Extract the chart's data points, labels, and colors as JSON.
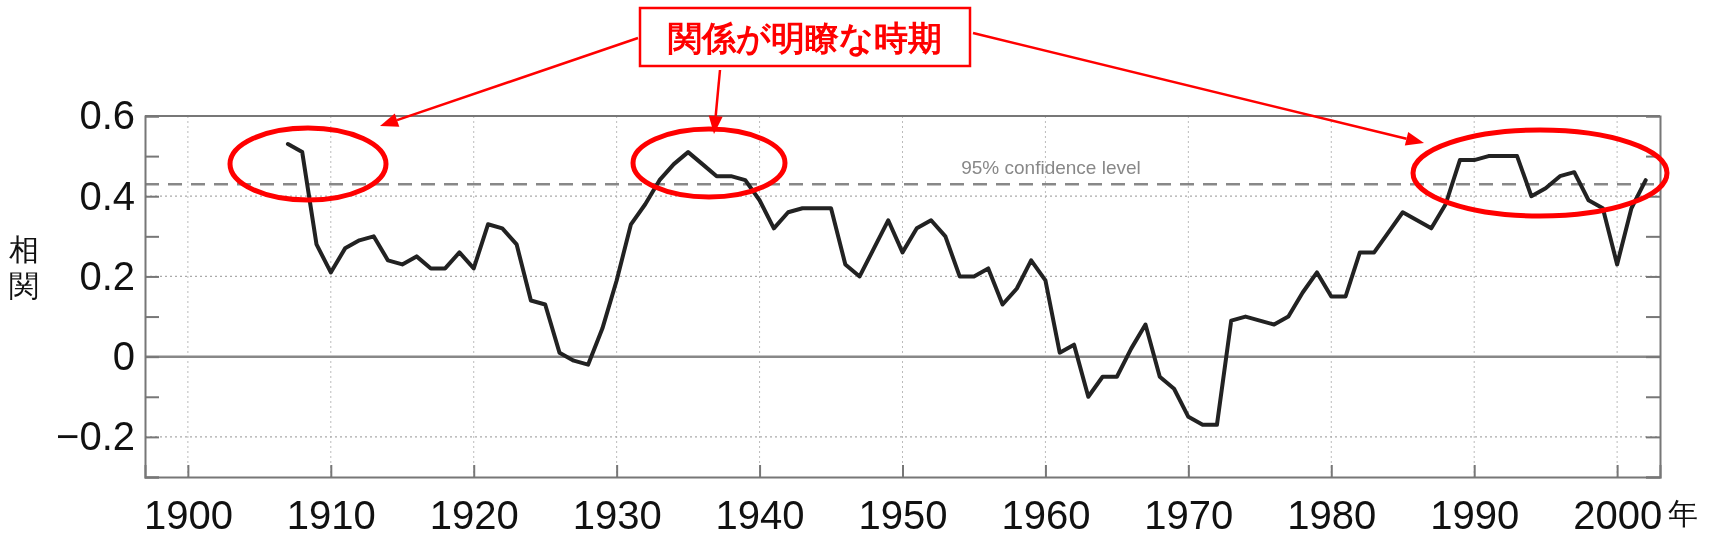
{
  "chart_data": {
    "type": "line",
    "xlabel": "年",
    "ylabel": "相関",
    "x": [
      1907,
      1908,
      1909,
      1910,
      1911,
      1912,
      1913,
      1914,
      1915,
      1916,
      1917,
      1918,
      1919,
      1920,
      1921,
      1922,
      1923,
      1924,
      1925,
      1926,
      1927,
      1928,
      1929,
      1930,
      1931,
      1932,
      1933,
      1934,
      1935,
      1936,
      1937,
      1938,
      1939,
      1940,
      1941,
      1942,
      1943,
      1944,
      1945,
      1946,
      1947,
      1948,
      1949,
      1950,
      1951,
      1952,
      1953,
      1954,
      1955,
      1956,
      1957,
      1958,
      1959,
      1960,
      1961,
      1962,
      1963,
      1964,
      1965,
      1966,
      1967,
      1968,
      1969,
      1970,
      1971,
      1972,
      1973,
      1974,
      1975,
      1976,
      1977,
      1978,
      1979,
      1980,
      1981,
      1982,
      1983,
      1984,
      1985,
      1986,
      1987,
      1988,
      1989,
      1990,
      1991,
      1992,
      1993,
      1994,
      1995,
      1996,
      1997,
      1998,
      1999,
      2000,
      2001,
      2002
    ],
    "series": [
      {
        "color": "#222222",
        "values": [
          0.53,
          0.51,
          0.28,
          0.21,
          0.27,
          0.29,
          0.3,
          0.24,
          0.23,
          0.25,
          0.22,
          0.22,
          0.26,
          0.22,
          0.33,
          0.32,
          0.28,
          0.14,
          0.13,
          0.01,
          -0.01,
          -0.02,
          0.07,
          0.19,
          0.33,
          0.38,
          0.44,
          0.48,
          0.51,
          0.48,
          0.45,
          0.45,
          0.44,
          0.39,
          0.32,
          0.36,
          0.37,
          0.37,
          0.37,
          0.23,
          0.2,
          0.27,
          0.34,
          0.26,
          0.32,
          0.34,
          0.3,
          0.2,
          0.2,
          0.22,
          0.13,
          0.17,
          0.24,
          0.19,
          0.01,
          0.03,
          -0.1,
          -0.05,
          -0.05,
          0.02,
          0.08,
          -0.05,
          -0.08,
          -0.15,
          -0.17,
          -0.17,
          0.09,
          0.1,
          0.09,
          0.08,
          0.1,
          0.16,
          0.21,
          0.15,
          0.15,
          0.26,
          0.26,
          0.31,
          0.36,
          0.34,
          0.32,
          0.38,
          0.49,
          0.49,
          0.5,
          0.5,
          0.5,
          0.4,
          0.42,
          0.45,
          0.46,
          0.39,
          0.37,
          0.23,
          0.37,
          0.44
        ]
      }
    ],
    "xlim": [
      1897,
      2003
    ],
    "xticks": [
      1900,
      1910,
      1920,
      1930,
      1940,
      1950,
      1960,
      1970,
      1980,
      1990,
      2000
    ],
    "ylim": [
      -0.3,
      0.6
    ],
    "yticks": [
      {
        "value": -0.3,
        "label": null
      },
      -0.2,
      {
        "value": -0.1,
        "label": null
      },
      0,
      {
        "value": 0.1,
        "label": null
      },
      0.2,
      {
        "value": 0.3,
        "label": null
      },
      0.4,
      {
        "value": 0.5,
        "label": null
      },
      0.6
    ],
    "grid": true,
    "ref_lines": [
      {
        "axis": "y",
        "value": 0.43,
        "label": "95% confidence level",
        "color": "#888888",
        "line_style": "dashed"
      },
      {
        "axis": "y",
        "value": 0,
        "label": null,
        "color": "#888888",
        "line_style": "solid"
      }
    ],
    "annotations": [
      "関係が明瞭な時期"
    ]
  }
}
